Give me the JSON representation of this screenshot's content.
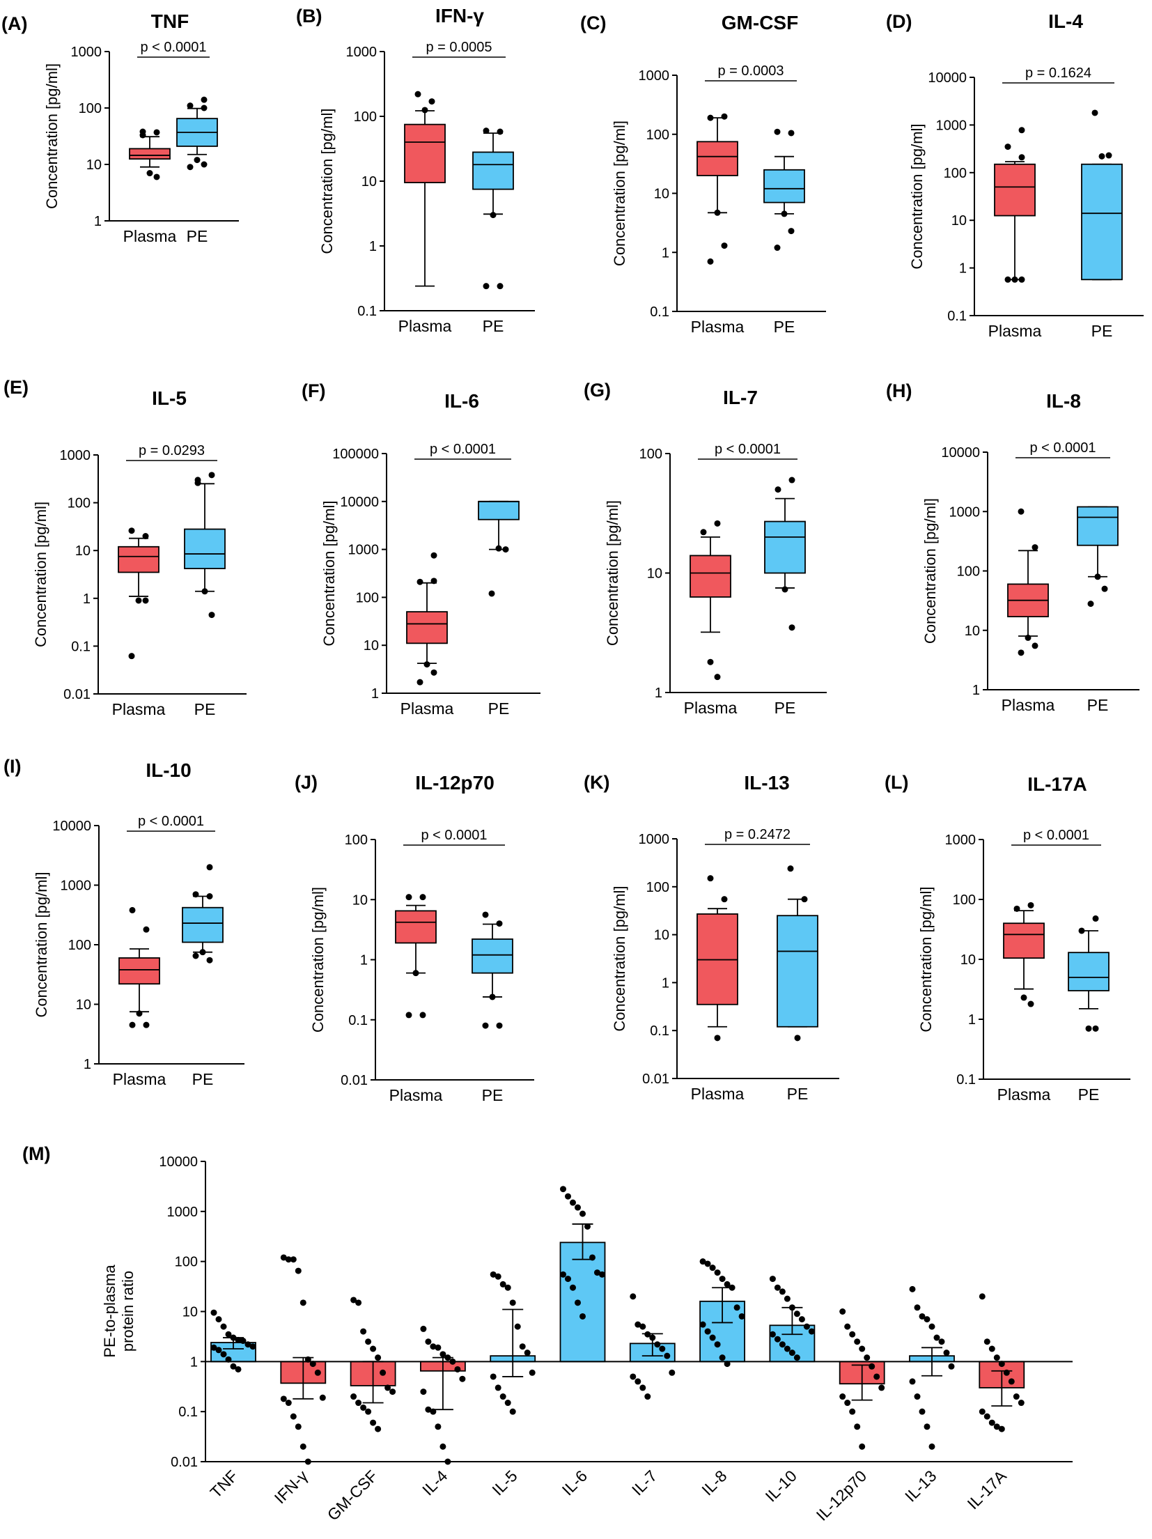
{
  "colors": {
    "plasma": "#f0585d",
    "pe": "#5ec8f5",
    "stroke": "#000000",
    "point": "#000000"
  },
  "chart_data": [
    {
      "type": "box",
      "letter": "(A)",
      "title": "TNF",
      "ylabel": "Concentration [pg/ml]",
      "yscale": "log",
      "ylim": [
        1,
        1000
      ],
      "yticks": [
        "1",
        "10",
        "100",
        "1000"
      ],
      "categories": [
        "Plasma",
        "PE"
      ],
      "p_value": "p < 0.0001",
      "boxes": [
        {
          "group": "Plasma",
          "whisker_low": 9,
          "q1": 12.5,
          "median": 14.5,
          "q3": 19,
          "whisker_high": 31,
          "outliers": [
            7,
            6,
            33,
            37,
            38
          ]
        },
        {
          "group": "PE",
          "whisker_low": 15,
          "q1": 21,
          "median": 37,
          "q3": 65,
          "whisker_high": 98,
          "outliers": [
            12,
            10,
            9,
            100,
            110,
            140
          ]
        }
      ]
    },
    {
      "type": "box",
      "letter": "(B)",
      "title": "IFN-γ",
      "ylabel": "Concentration [pg/ml]",
      "yscale": "log",
      "ylim": [
        0.1,
        1000
      ],
      "yticks": [
        "0.1",
        "1",
        "10",
        "100",
        "1000"
      ],
      "categories": [
        "Plasma",
        "PE"
      ],
      "p_value": "p = 0.0005",
      "boxes": [
        {
          "group": "Plasma",
          "whisker_low": 0.24,
          "q1": 9.5,
          "median": 40,
          "q3": 75,
          "whisker_high": 122,
          "outliers": [
            125,
            170,
            220
          ]
        },
        {
          "group": "PE",
          "whisker_low": 3.1,
          "q1": 7.5,
          "median": 18,
          "q3": 28,
          "whisker_high": 55,
          "outliers": [
            3,
            0.24,
            0.24,
            58,
            60
          ]
        }
      ]
    },
    {
      "type": "box",
      "letter": "(C)",
      "title": "GM-CSF",
      "ylabel": "Concentration [pg/ml]",
      "yscale": "log",
      "ylim": [
        0.1,
        1000
      ],
      "yticks": [
        "0.1",
        "1",
        "10",
        "100",
        "1000"
      ],
      "categories": [
        "Plasma",
        "PE"
      ],
      "p_value": "p = 0.0003",
      "boxes": [
        {
          "group": "Plasma",
          "whisker_low": 4.7,
          "q1": 20,
          "median": 42,
          "q3": 75,
          "whisker_high": 190,
          "outliers": [
            4.7,
            1.3,
            0.7,
            200,
            190
          ]
        },
        {
          "group": "PE",
          "whisker_low": 4.5,
          "q1": 7,
          "median": 12,
          "q3": 25,
          "whisker_high": 42,
          "outliers": [
            4.5,
            2.3,
            1.2,
            105,
            110
          ]
        }
      ]
    },
    {
      "type": "box",
      "letter": "(D)",
      "title": "IL-4",
      "ylabel": "Concentration [pg/ml]",
      "yscale": "log",
      "ylim": [
        0.1,
        10000
      ],
      "yticks": [
        "0.1",
        "1",
        "10",
        "100",
        "1000",
        "10000"
      ],
      "categories": [
        "Plasma",
        "PE"
      ],
      "p_value": "p = 0.1624",
      "boxes": [
        {
          "group": "Plasma",
          "whisker_low": 0.57,
          "q1": 12.5,
          "median": 50,
          "q3": 150,
          "whisker_high": 170,
          "outliers": [
            0.57,
            0.57,
            0.57,
            210,
            350,
            780
          ]
        },
        {
          "group": "PE",
          "whisker_low": 0.57,
          "q1": 0.57,
          "median": 14,
          "q3": 150,
          "whisker_high": 150,
          "outliers": [
            220,
            230,
            1800
          ]
        }
      ]
    },
    {
      "type": "box",
      "letter": "(E)",
      "title": "IL-5",
      "ylabel": "Concentration [pg/ml]",
      "yscale": "log",
      "ylim": [
        0.01,
        1000
      ],
      "yticks": [
        "0.01",
        "0.1",
        "1",
        "10",
        "100",
        "1000"
      ],
      "categories": [
        "Plasma",
        "PE"
      ],
      "p_value": "p = 0.0293",
      "boxes": [
        {
          "group": "Plasma",
          "whisker_low": 1.1,
          "q1": 3.5,
          "median": 7.5,
          "q3": 12,
          "whisker_high": 18,
          "outliers": [
            0.9,
            0.9,
            0.062,
            20,
            26
          ]
        },
        {
          "group": "PE",
          "whisker_low": 1.4,
          "q1": 4.2,
          "median": 8.5,
          "q3": 28,
          "whisker_high": 250,
          "outliers": [
            1.4,
            0.45,
            260,
            380,
            300
          ]
        }
      ]
    },
    {
      "type": "box",
      "letter": "(F)",
      "title": "IL-6",
      "ylabel": "Concentration [pg/ml]",
      "yscale": "log",
      "ylim": [
        1,
        100000
      ],
      "yticks": [
        "1",
        "10",
        "100",
        "1000",
        "10000",
        "100000"
      ],
      "categories": [
        "Plasma",
        "PE"
      ],
      "p_value": "p < 0.0001",
      "boxes": [
        {
          "group": "Plasma",
          "whisker_low": 4.2,
          "q1": 11,
          "median": 28,
          "q3": 50,
          "whisker_high": 200,
          "outliers": [
            4,
            2.7,
            1.7,
            220,
            210,
            750
          ]
        },
        {
          "group": "PE",
          "whisker_low": 1000,
          "q1": 4200,
          "median": 10000,
          "q3": 10000,
          "whisker_high": 10000,
          "outliers": [
            1050,
            1000,
            120
          ]
        }
      ]
    },
    {
      "type": "box",
      "letter": "(G)",
      "title": "IL-7",
      "ylabel": "Concentration [pg/ml]",
      "yscale": "log",
      "ylim": [
        1,
        100
      ],
      "yticks": [
        "1",
        "10",
        "100"
      ],
      "categories": [
        "Plasma",
        "PE"
      ],
      "p_value": "p < 0.0001",
      "boxes": [
        {
          "group": "Plasma",
          "whisker_low": 3.2,
          "q1": 6.3,
          "median": 10,
          "q3": 14,
          "whisker_high": 20,
          "outliers": [
            1.8,
            1.35,
            22,
            26
          ]
        },
        {
          "group": "PE",
          "whisker_low": 7.5,
          "q1": 10,
          "median": 20,
          "q3": 27,
          "whisker_high": 42,
          "outliers": [
            7.3,
            3.5,
            50,
            60
          ]
        }
      ]
    },
    {
      "type": "box",
      "letter": "(H)",
      "title": "IL-8",
      "ylabel": "Concentration [pg/ml]",
      "yscale": "log",
      "ylim": [
        1,
        10000
      ],
      "yticks": [
        "1",
        "10",
        "100",
        "1000",
        "10000"
      ],
      "categories": [
        "Plasma",
        "PE"
      ],
      "p_value": "p < 0.0001",
      "boxes": [
        {
          "group": "Plasma",
          "whisker_low": 8,
          "q1": 17,
          "median": 32,
          "q3": 60,
          "whisker_high": 220,
          "outliers": [
            7.5,
            5.5,
            4.2,
            250,
            1000
          ]
        },
        {
          "group": "PE",
          "whisker_low": 80,
          "q1": 270,
          "median": 800,
          "q3": 1200,
          "whisker_high": 1200,
          "outliers": [
            80,
            50,
            28
          ]
        }
      ]
    },
    {
      "type": "box",
      "letter": "(I)",
      "title": "IL-10",
      "ylabel": "Concentration [pg/ml]",
      "yscale": "log",
      "ylim": [
        1,
        10000
      ],
      "yticks": [
        "1",
        "10",
        "100",
        "1000",
        "10000"
      ],
      "categories": [
        "Plasma",
        "PE"
      ],
      "p_value": "p < 0.0001",
      "boxes": [
        {
          "group": "Plasma",
          "whisker_low": 7.5,
          "q1": 22,
          "median": 38,
          "q3": 60,
          "whisker_high": 85,
          "outliers": [
            7,
            4.5,
            4.5,
            180,
            380
          ]
        },
        {
          "group": "PE",
          "whisker_low": 75,
          "q1": 110,
          "median": 230,
          "q3": 420,
          "whisker_high": 650,
          "outliers": [
            75,
            55,
            65,
            650,
            700,
            2000
          ]
        }
      ]
    },
    {
      "type": "box",
      "letter": "(J)",
      "title": "IL-12p70",
      "ylabel": "Concentration [pg/ml]",
      "yscale": "log",
      "ylim": [
        0.01,
        100
      ],
      "yticks": [
        "0.01",
        "0.1",
        "1",
        "10",
        "100"
      ],
      "categories": [
        "Plasma",
        "PE"
      ],
      "p_value": "p < 0.0001",
      "boxes": [
        {
          "group": "Plasma",
          "whisker_low": 0.6,
          "q1": 1.9,
          "median": 4.2,
          "q3": 6.5,
          "whisker_high": 8,
          "outliers": [
            0.6,
            0.12,
            0.12,
            11,
            11
          ]
        },
        {
          "group": "PE",
          "whisker_low": 0.24,
          "q1": 0.6,
          "median": 1.2,
          "q3": 2.2,
          "whisker_high": 3.9,
          "outliers": [
            0.24,
            0.08,
            0.08,
            4,
            5.6
          ]
        }
      ]
    },
    {
      "type": "box",
      "letter": "(K)",
      "title": "IL-13",
      "ylabel": "Concentration [pg/ml]",
      "yscale": "log",
      "ylim": [
        0.01,
        1000
      ],
      "yticks": [
        "0.01",
        "0.1",
        "1",
        "10",
        "100",
        "1000"
      ],
      "categories": [
        "Plasma",
        "PE"
      ],
      "p_value": "p = 0.2472",
      "boxes": [
        {
          "group": "Plasma",
          "whisker_low": 0.12,
          "q1": 0.35,
          "median": 3,
          "q3": 27,
          "whisker_high": 35,
          "outliers": [
            0.07,
            55,
            150
          ]
        },
        {
          "group": "PE",
          "whisker_low": 0.12,
          "q1": 0.12,
          "median": 4.5,
          "q3": 25,
          "whisker_high": 55,
          "outliers": [
            0.07,
            55,
            240
          ]
        }
      ]
    },
    {
      "type": "box",
      "letter": "(L)",
      "title": "IL-17A",
      "ylabel": "Concentration [pg/ml]",
      "yscale": "log",
      "ylim": [
        0.1,
        1000
      ],
      "yticks": [
        "0.1",
        "1",
        "10",
        "100",
        "1000"
      ],
      "categories": [
        "Plasma",
        "PE"
      ],
      "p_value": "p < 0.0001",
      "boxes": [
        {
          "group": "Plasma",
          "whisker_low": 3.2,
          "q1": 10.5,
          "median": 26,
          "q3": 40,
          "whisker_high": 65,
          "outliers": [
            2.3,
            1.8,
            70,
            80
          ]
        },
        {
          "group": "PE",
          "whisker_low": 1.5,
          "q1": 3,
          "median": 5,
          "q3": 13,
          "whisker_high": 30,
          "outliers": [
            0.7,
            0.7,
            30,
            48
          ]
        }
      ]
    },
    {
      "type": "bar",
      "letter": "(M)",
      "ylabel": "PE-to-plasma protein ratio",
      "yscale": "log",
      "baseline": 1,
      "ylim": [
        0.01,
        10000
      ],
      "yticks": [
        "0.01",
        "0.1",
        "1",
        "10",
        "100",
        "1000",
        "10000"
      ],
      "categories": [
        "TNF",
        "IFN-γ",
        "GM-CSF",
        "IL-4",
        "IL-5",
        "IL-6",
        "IL-7",
        "IL-8",
        "IL-10",
        "IL-12p70",
        "IL-13",
        "IL-17A"
      ],
      "values": [
        2.4,
        0.37,
        0.33,
        0.65,
        1.3,
        240,
        2.3,
        16,
        5.3,
        0.36,
        1.3,
        0.3
      ],
      "error_low": [
        1.8,
        0.18,
        0.15,
        0.11,
        0.5,
        110,
        1.3,
        6,
        3.5,
        0.17,
        0.52,
        0.13
      ],
      "error_high": [
        3.0,
        1.2,
        1.0,
        1.2,
        11,
        560,
        3.6,
        30,
        12,
        0.85,
        1.9,
        0.65
      ],
      "points": [
        [
          9.5,
          7,
          5,
          3.5,
          3,
          2.7,
          2.6,
          2.2,
          2,
          1.9,
          1.7,
          1.4,
          1.1,
          0.8,
          0.7
        ],
        [
          120,
          110,
          110,
          65,
          15,
          1.1,
          0.9,
          0.6,
          0.19,
          0.18,
          0.15,
          0.08,
          0.05,
          0.02,
          0.01
        ],
        [
          17,
          15,
          4,
          2.5,
          1.8,
          1.2,
          0.6,
          0.3,
          0.25,
          0.2,
          0.15,
          0.12,
          0.1,
          0.06,
          0.045
        ],
        [
          4.5,
          2.5,
          2,
          1.9,
          1.4,
          1.2,
          1,
          0.7,
          0.45,
          0.25,
          0.11,
          0.1,
          0.05,
          0.02,
          0.01
        ],
        [
          55,
          50,
          35,
          30,
          15,
          5,
          2,
          1.5,
          0.6,
          0.5,
          0.3,
          0.2,
          0.15,
          0.1
        ],
        [
          2800,
          2000,
          1500,
          1200,
          900,
          500,
          120,
          60,
          55,
          55,
          45,
          30,
          15,
          8
        ],
        [
          20,
          5.5,
          5,
          3.5,
          3,
          2.2,
          1.8,
          1.3,
          0.6,
          0.5,
          0.4,
          0.3,
          0.2
        ],
        [
          100,
          90,
          75,
          60,
          45,
          35,
          30,
          12,
          8,
          5.5,
          4,
          3,
          2.2,
          1.2,
          0.9
        ],
        [
          45,
          30,
          25,
          18,
          12,
          9,
          7,
          5,
          4,
          3.5,
          2.8,
          2.2,
          1.8,
          1.5,
          1.2
        ],
        [
          10,
          5,
          3.5,
          2.5,
          1.8,
          1.2,
          0.8,
          0.5,
          0.3,
          0.2,
          0.15,
          0.1,
          0.05,
          0.02
        ],
        [
          28,
          12,
          8,
          7,
          5,
          3,
          2.5,
          1.5,
          0.8,
          0.4,
          0.2,
          0.1,
          0.05,
          0.02
        ],
        [
          20,
          2.5,
          1.8,
          1.2,
          0.9,
          0.6,
          0.4,
          0.2,
          0.15,
          0.1,
          0.08,
          0.06,
          0.05,
          0.045
        ]
      ]
    }
  ]
}
